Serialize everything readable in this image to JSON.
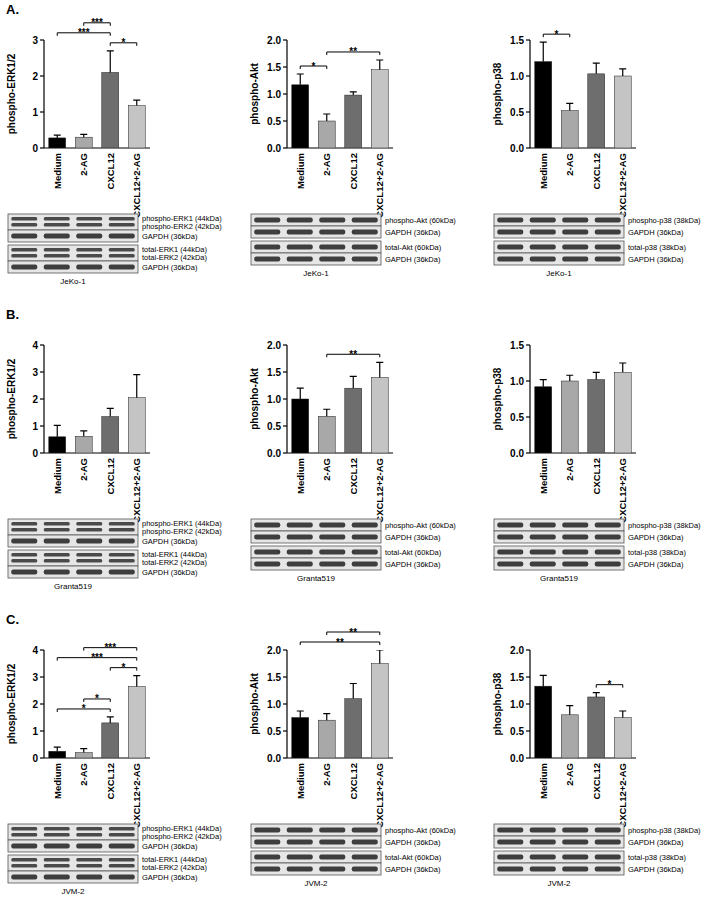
{
  "chart_data": [
    {
      "type": "bar",
      "y_label": "phospho-ERK1/2",
      "categories": [
        "Medium",
        "2-AG",
        "CXCL12",
        "CXCL12+2-AG"
      ],
      "values": [
        0.28,
        0.3,
        2.1,
        1.18
      ],
      "errors": [
        0.08,
        0.08,
        0.6,
        0.15
      ],
      "colors": [
        "#000000",
        "#a8a8a8",
        "#6e6e6e",
        "#c4c4c4"
      ],
      "ylim": [
        0,
        3
      ],
      "yticks": [
        0,
        1,
        2,
        3
      ],
      "annotations": [
        {
          "from": 2,
          "to": 3,
          "label": "*"
        },
        {
          "from": 0,
          "to": 2,
          "label": "***"
        },
        {
          "from": 1,
          "to": 2,
          "label": "***"
        }
      ]
    },
    {
      "type": "bar",
      "y_label": "phospho-Akt",
      "categories": [
        "Medium",
        "2-AG",
        "CXCL12",
        "CXCL12+2-AG"
      ],
      "values": [
        1.17,
        0.5,
        0.98,
        1.45
      ],
      "errors": [
        0.2,
        0.13,
        0.06,
        0.18
      ],
      "colors": [
        "#000000",
        "#a8a8a8",
        "#6e6e6e",
        "#c4c4c4"
      ],
      "ylim": [
        0,
        2
      ],
      "yticks": [
        {
          "value": 0,
          "label": "0.0"
        },
        0.5,
        {
          "value": 1,
          "label": "1.0"
        },
        1.5,
        {
          "value": 2,
          "label": "2.0"
        }
      ],
      "annotations": [
        {
          "from": 0,
          "to": 1,
          "label": "*"
        },
        {
          "from": 1,
          "to": 3,
          "label": "**"
        }
      ]
    },
    {
      "type": "bar",
      "y_label": "phospho-p38",
      "categories": [
        "Medium",
        "2-AG",
        "CXCL12",
        "CXCL12+2-AG"
      ],
      "values": [
        1.2,
        0.52,
        1.03,
        1.0
      ],
      "errors": [
        0.27,
        0.1,
        0.15,
        0.1
      ],
      "colors": [
        "#000000",
        "#a8a8a8",
        "#6e6e6e",
        "#c4c4c4"
      ],
      "ylim": [
        0,
        1.5
      ],
      "yticks": [
        {
          "value": 0,
          "label": "0.0"
        },
        0.5,
        {
          "value": 1,
          "label": "1.0"
        },
        1.5
      ],
      "annotations": [
        {
          "from": 0,
          "to": 1,
          "label": "*"
        }
      ]
    },
    {
      "type": "bar",
      "y_label": "phospho-ERK1/2",
      "categories": [
        "Medium",
        "2-AG",
        "CXCL12",
        "CXCL12+2-AG"
      ],
      "values": [
        0.6,
        0.62,
        1.35,
        2.05
      ],
      "errors": [
        0.42,
        0.2,
        0.3,
        0.85
      ],
      "colors": [
        "#000000",
        "#a8a8a8",
        "#6e6e6e",
        "#c4c4c4"
      ],
      "ylim": [
        0,
        4
      ],
      "yticks": [
        0,
        1,
        2,
        3,
        4
      ],
      "annotations": []
    },
    {
      "type": "bar",
      "y_label": "phospho-Akt",
      "categories": [
        "Medium",
        "2-AG",
        "CXCL12",
        "CXCL12+2-AG"
      ],
      "values": [
        1.0,
        0.68,
        1.2,
        1.4
      ],
      "errors": [
        0.2,
        0.13,
        0.22,
        0.28
      ],
      "colors": [
        "#000000",
        "#a8a8a8",
        "#6e6e6e",
        "#c4c4c4"
      ],
      "ylim": [
        0,
        2
      ],
      "yticks": [
        {
          "value": 0,
          "label": "0.0"
        },
        0.5,
        {
          "value": 1,
          "label": "1.0"
        },
        1.5,
        {
          "value": 2,
          "label": "2.0"
        }
      ],
      "annotations": [
        {
          "from": 1,
          "to": 3,
          "label": "**"
        }
      ]
    },
    {
      "type": "bar",
      "y_label": "phospho-p38",
      "categories": [
        "Medium",
        "2-AG",
        "CXCL12",
        "CXCL12+2-AG"
      ],
      "values": [
        0.92,
        1.0,
        1.02,
        1.12
      ],
      "errors": [
        0.1,
        0.08,
        0.1,
        0.13
      ],
      "colors": [
        "#000000",
        "#a8a8a8",
        "#6e6e6e",
        "#c4c4c4"
      ],
      "ylim": [
        0,
        1.5
      ],
      "yticks": [
        {
          "value": 0,
          "label": "0.0"
        },
        0.5,
        {
          "value": 1,
          "label": "1.0"
        },
        1.5
      ],
      "annotations": []
    },
    {
      "type": "bar",
      "y_label": "phospho-ERK1/2",
      "categories": [
        "Medium",
        "2-AG",
        "CXCL12",
        "CXCL12+2-AG"
      ],
      "values": [
        0.25,
        0.2,
        1.3,
        2.65
      ],
      "errors": [
        0.15,
        0.15,
        0.22,
        0.4
      ],
      "colors": [
        "#000000",
        "#a8a8a8",
        "#6e6e6e",
        "#c4c4c4"
      ],
      "ylim": [
        0,
        4
      ],
      "yticks": [
        0,
        1,
        2,
        3,
        4
      ],
      "annotations": [
        {
          "from": 2,
          "to": 3,
          "label": "*"
        },
        {
          "from": 0,
          "to": 3,
          "label": "***"
        },
        {
          "from": 1,
          "to": 3,
          "label": "***"
        },
        {
          "from": 0,
          "to": 2,
          "label": "*"
        },
        {
          "from": 1,
          "to": 2,
          "label": "*"
        }
      ]
    },
    {
      "type": "bar",
      "y_label": "phospho-Akt",
      "categories": [
        "Medium",
        "2-AG",
        "CXCL12",
        "CXCL12+2-AG"
      ],
      "values": [
        0.75,
        0.7,
        1.1,
        1.75
      ],
      "errors": [
        0.12,
        0.12,
        0.28,
        0.25
      ],
      "colors": [
        "#000000",
        "#a8a8a8",
        "#6e6e6e",
        "#c4c4c4"
      ],
      "ylim": [
        0,
        2
      ],
      "yticks": [
        {
          "value": 0,
          "label": "0.0"
        },
        0.5,
        {
          "value": 1,
          "label": "1.0"
        },
        1.5,
        {
          "value": 2,
          "label": "2.0"
        }
      ],
      "annotations": [
        {
          "from": 0,
          "to": 3,
          "label": "**"
        },
        {
          "from": 1,
          "to": 3,
          "label": "**"
        }
      ]
    },
    {
      "type": "bar",
      "y_label": "phospho-p38",
      "categories": [
        "Medium",
        "2-AG",
        "CXCL12",
        "CXCL12+2-AG"
      ],
      "values": [
        1.33,
        0.8,
        1.13,
        0.75
      ],
      "errors": [
        0.2,
        0.17,
        0.08,
        0.12
      ],
      "colors": [
        "#000000",
        "#a8a8a8",
        "#6e6e6e",
        "#c4c4c4"
      ],
      "ylim": [
        0,
        2
      ],
      "yticks": [
        {
          "value": 0,
          "label": "0.0"
        },
        0.5,
        {
          "value": 1,
          "label": "1.0"
        },
        1.5,
        {
          "value": 2,
          "label": "2.0"
        }
      ],
      "annotations": [
        {
          "from": 2,
          "to": 3,
          "label": "*"
        }
      ]
    }
  ],
  "panels": [
    {
      "label": "A."
    },
    {
      "label": "B."
    },
    {
      "label": "C."
    }
  ],
  "blots": [
    {
      "caption": "JeKo-1",
      "boxes": [
        [
          [
            "phospho-ERK1 (44kDa)",
            "phospho-ERK2 (42kDa)"
          ],
          [
            "GAPDH (36kDa)"
          ]
        ],
        [
          [
            "total-ERK1 (44kDa)",
            "total-ERK2 (42kDa)"
          ],
          [
            "GAPDH (36kDa)"
          ]
        ]
      ]
    },
    {
      "caption": "JeKo-1",
      "boxes": [
        [
          [
            "phospho-Akt (60kDa)"
          ],
          [
            "GAPDH (36kDa)"
          ]
        ],
        [
          [
            "total-Akt (60kDa)"
          ],
          [
            "GAPDH (36kDa)"
          ]
        ]
      ]
    },
    {
      "caption": "JeKo-1",
      "boxes": [
        [
          [
            "phospho-p38 (38kDa)"
          ],
          [
            "GAPDH (36kDa)"
          ]
        ],
        [
          [
            "total-p38 (38kDa)"
          ],
          [
            "GAPDH (36kDa)"
          ]
        ]
      ]
    },
    {
      "caption": "Granta519",
      "boxes": [
        [
          [
            "phospho-ERK1 (44kDa)",
            "phospho-ERK2 (42kDa)"
          ],
          [
            "GAPDH (36kDa)"
          ]
        ],
        [
          [
            "total-ERK1 (44kDa)",
            "total-ERK2 (42kDa)"
          ],
          [
            "GAPDH (36kDa)"
          ]
        ]
      ]
    },
    {
      "caption": "Granta519",
      "boxes": [
        [
          [
            "phospho-Akt (60kDa)"
          ],
          [
            "GAPDH (36kDa)"
          ]
        ],
        [
          [
            "total-Akt (60kDa)"
          ],
          [
            "GAPDH (36kDa)"
          ]
        ]
      ]
    },
    {
      "caption": "Granta519",
      "boxes": [
        [
          [
            "phospho-p38 (38kDa)"
          ],
          [
            "GAPDH (36kDa)"
          ]
        ],
        [
          [
            "total-p38 (38kDa)"
          ],
          [
            "GAPDH (36kDa)"
          ]
        ]
      ]
    },
    {
      "caption": "JVM-2",
      "boxes": [
        [
          [
            "phospho-ERK1 (44kDa)",
            "phospho-ERK2 (42kDa)"
          ],
          [
            "GAPDH (36kDa)"
          ]
        ],
        [
          [
            "total-ERK1 (44kDa)",
            "total-ERK2 (42kDa)"
          ],
          [
            "GAPDH (36kDa)"
          ]
        ]
      ]
    },
    {
      "caption": "JVM-2",
      "boxes": [
        [
          [
            "phospho-Akt (60kDa)"
          ],
          [
            "GAPDH (36kDa)"
          ]
        ],
        [
          [
            "total-Akt (60kDa)"
          ],
          [
            "GAPDH (36kDa)"
          ]
        ]
      ]
    },
    {
      "caption": "JVM-2",
      "boxes": [
        [
          [
            "phospho-p38 (38kDa)"
          ],
          [
            "GAPDH (36kDa)"
          ]
        ],
        [
          [
            "total-p38 (38kDa)"
          ],
          [
            "GAPDH (36kDa)"
          ]
        ]
      ]
    }
  ]
}
